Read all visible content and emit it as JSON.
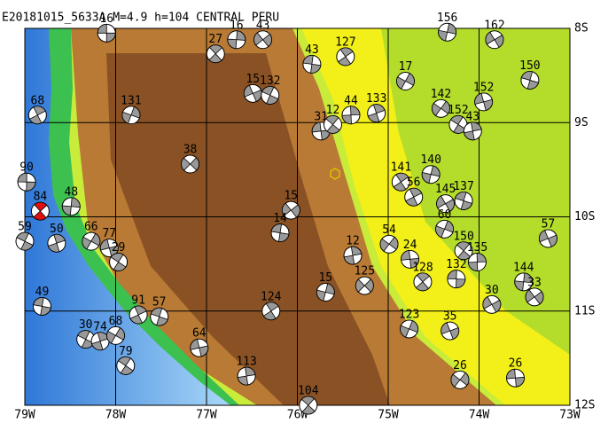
{
  "chart_data": {
    "type": "focal-map",
    "title": "E20181015_5633A M=4.9 h=104 CENTRAL PERU",
    "xlim": [
      -79,
      -73
    ],
    "ylim": [
      -12,
      -8
    ],
    "xticks": [
      {
        "value": -79,
        "label": "79W"
      },
      {
        "value": -78,
        "label": "78W"
      },
      {
        "value": -77,
        "label": "77W"
      },
      {
        "value": -76,
        "label": "76W"
      },
      {
        "value": -75,
        "label": "75W"
      },
      {
        "value": -74,
        "label": "74W"
      },
      {
        "value": -73,
        "label": "73W"
      }
    ],
    "yticks": [
      {
        "value": -8,
        "label": "8S"
      },
      {
        "value": -9,
        "label": "9S"
      },
      {
        "value": -10,
        "label": "10S"
      },
      {
        "value": -11,
        "label": "11S"
      },
      {
        "value": -12,
        "label": "12S"
      }
    ],
    "grid": true,
    "ball_color": "#999999",
    "events": [
      {
        "lon": -78.1,
        "lat": -8.05,
        "depth": "16"
      },
      {
        "lon": -76.9,
        "lat": -8.27,
        "depth": "27"
      },
      {
        "lon": -76.67,
        "lat": -8.12,
        "depth": "16"
      },
      {
        "lon": -76.38,
        "lat": -8.12,
        "depth": "43"
      },
      {
        "lon": -75.84,
        "lat": -8.38,
        "depth": "43"
      },
      {
        "lon": -75.47,
        "lat": -8.3,
        "depth": "127"
      },
      {
        "lon": -74.35,
        "lat": -8.04,
        "depth": "156"
      },
      {
        "lon": -73.83,
        "lat": -8.12,
        "depth": "162"
      },
      {
        "lon": -73.44,
        "lat": -8.55,
        "depth": "150"
      },
      {
        "lon": -78.86,
        "lat": -8.92,
        "depth": "68"
      },
      {
        "lon": -77.83,
        "lat": -8.92,
        "depth": "131"
      },
      {
        "lon": -76.49,
        "lat": -8.69,
        "depth": "15"
      },
      {
        "lon": -76.3,
        "lat": -8.71,
        "depth": "132"
      },
      {
        "lon": -75.13,
        "lat": -8.9,
        "depth": "133"
      },
      {
        "lon": -74.81,
        "lat": -8.56,
        "depth": "17"
      },
      {
        "lon": -73.95,
        "lat": -8.78,
        "depth": "152"
      },
      {
        "lon": -74.23,
        "lat": -9.02,
        "depth": "152"
      },
      {
        "lon": -74.07,
        "lat": -9.09,
        "depth": "43"
      },
      {
        "lon": -74.42,
        "lat": -8.85,
        "depth": "142"
      },
      {
        "lon": -75.74,
        "lat": -9.09,
        "depth": "31"
      },
      {
        "lon": -75.61,
        "lat": -9.02,
        "depth": "12"
      },
      {
        "lon": -75.41,
        "lat": -8.92,
        "depth": "44"
      },
      {
        "lon": -77.18,
        "lat": -9.44,
        "depth": "38"
      },
      {
        "lon": -78.98,
        "lat": -9.63,
        "depth": "90"
      },
      {
        "lon": -78.83,
        "lat": -9.94,
        "depth": "84",
        "color": "#e01010"
      },
      {
        "lon": -78.49,
        "lat": -9.89,
        "depth": "48"
      },
      {
        "lon": -76.07,
        "lat": -9.93,
        "depth": "15"
      },
      {
        "lon": -76.19,
        "lat": -10.17,
        "depth": "14"
      },
      {
        "lon": -74.86,
        "lat": -9.63,
        "depth": "141"
      },
      {
        "lon": -74.53,
        "lat": -9.55,
        "depth": "140"
      },
      {
        "lon": -74.37,
        "lat": -9.86,
        "depth": "145"
      },
      {
        "lon": -74.17,
        "lat": -9.83,
        "depth": "137"
      },
      {
        "lon": -74.72,
        "lat": -9.79,
        "depth": "56"
      },
      {
        "lon": -74.38,
        "lat": -10.13,
        "depth": "60"
      },
      {
        "lon": -73.24,
        "lat": -10.23,
        "depth": "57"
      },
      {
        "lon": -79.0,
        "lat": -10.26,
        "depth": "59"
      },
      {
        "lon": -78.65,
        "lat": -10.28,
        "depth": "50"
      },
      {
        "lon": -78.27,
        "lat": -10.26,
        "depth": "66"
      },
      {
        "lon": -78.07,
        "lat": -10.33,
        "depth": "77"
      },
      {
        "lon": -77.97,
        "lat": -10.48,
        "depth": "29"
      },
      {
        "lon": -75.39,
        "lat": -10.41,
        "depth": "12"
      },
      {
        "lon": -74.99,
        "lat": -10.29,
        "depth": "54"
      },
      {
        "lon": -74.76,
        "lat": -10.45,
        "depth": "24"
      },
      {
        "lon": -74.17,
        "lat": -10.36,
        "depth": "150"
      },
      {
        "lon": -74.02,
        "lat": -10.48,
        "depth": "135"
      },
      {
        "lon": -75.26,
        "lat": -10.73,
        "depth": "125"
      },
      {
        "lon": -74.25,
        "lat": -10.66,
        "depth": "132"
      },
      {
        "lon": -74.62,
        "lat": -10.69,
        "depth": "128"
      },
      {
        "lon": -73.51,
        "lat": -10.69,
        "depth": "144"
      },
      {
        "lon": -73.39,
        "lat": -10.85,
        "depth": "33"
      },
      {
        "lon": -78.81,
        "lat": -10.95,
        "depth": "49"
      },
      {
        "lon": -76.29,
        "lat": -11.0,
        "depth": "124"
      },
      {
        "lon": -75.69,
        "lat": -10.8,
        "depth": "15"
      },
      {
        "lon": -73.86,
        "lat": -10.93,
        "depth": "30"
      },
      {
        "lon": -77.52,
        "lat": -11.06,
        "depth": "57"
      },
      {
        "lon": -77.75,
        "lat": -11.04,
        "depth": "91"
      },
      {
        "lon": -74.77,
        "lat": -11.19,
        "depth": "123"
      },
      {
        "lon": -74.32,
        "lat": -11.21,
        "depth": "35"
      },
      {
        "lon": -78.33,
        "lat": -11.3,
        "depth": "30"
      },
      {
        "lon": -78.17,
        "lat": -11.32,
        "depth": "74"
      },
      {
        "lon": -78.0,
        "lat": -11.26,
        "depth": "68"
      },
      {
        "lon": -77.08,
        "lat": -11.39,
        "depth": "64"
      },
      {
        "lon": -77.89,
        "lat": -11.58,
        "depth": "79"
      },
      {
        "lon": -76.56,
        "lat": -11.69,
        "depth": "113"
      },
      {
        "lon": -74.21,
        "lat": -11.73,
        "depth": "26"
      },
      {
        "lon": -73.6,
        "lat": -11.71,
        "depth": "26"
      },
      {
        "lon": -75.88,
        "lat": -12.0,
        "depth": "104"
      }
    ]
  }
}
